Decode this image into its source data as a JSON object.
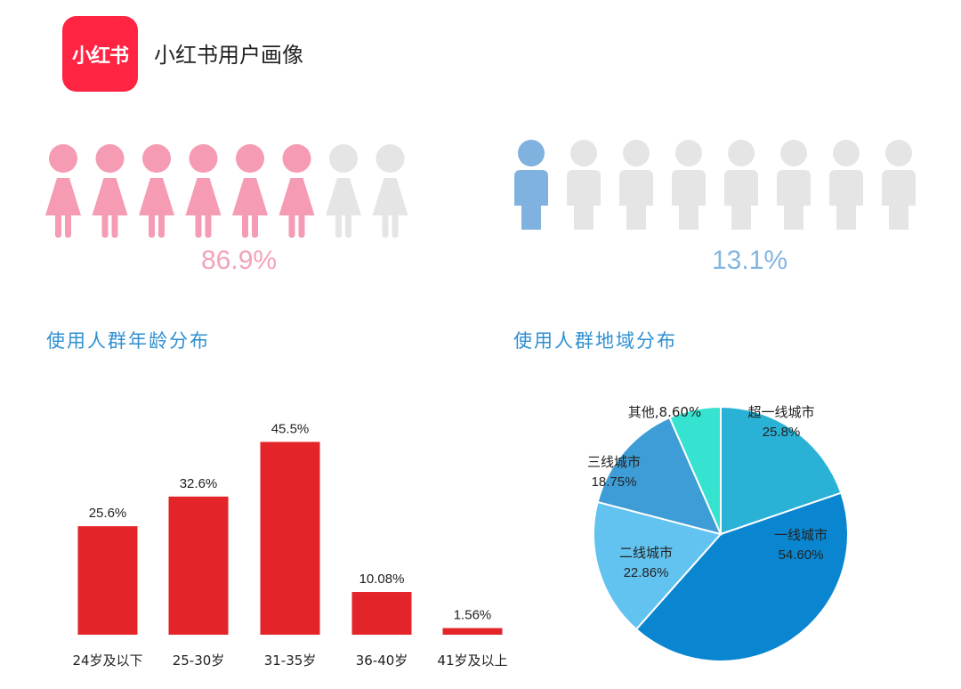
{
  "header": {
    "logo_text": "小红书",
    "title": "小红书用户画像"
  },
  "gender": {
    "female": {
      "percent_label": "86.9%",
      "filled": 6,
      "total": 8,
      "color": "#f59bb4"
    },
    "male": {
      "percent_label": "13.1%",
      "filled": 1,
      "total": 8,
      "color": "#7fb2df"
    },
    "empty_color": "#e5e5e5"
  },
  "age_section": {
    "title": "使用人群年龄分布"
  },
  "region_section": {
    "title": "使用人群地域分布"
  },
  "chart_data": [
    {
      "type": "bar",
      "categories": [
        "24岁及以下",
        "25-30岁",
        "31-35岁",
        "36-40岁",
        "41岁及以上"
      ],
      "values": [
        25.6,
        32.6,
        45.5,
        10.08,
        1.56
      ],
      "value_labels": [
        "25.6%",
        "32.6%",
        "45.5%",
        "10.08%",
        "1.56%"
      ],
      "color": "#e32428",
      "ylim": [
        0,
        50
      ]
    },
    {
      "type": "pie",
      "slices": [
        {
          "name": "超一线城市",
          "value": 25.8,
          "label": "25.8%",
          "color": "#29b2d6"
        },
        {
          "name": "一线城市",
          "value": 54.6,
          "label": "54.60%",
          "color": "#0a86d0"
        },
        {
          "name": "二线城市",
          "value": 22.86,
          "label": "22.86%",
          "color": "#63c3f0"
        },
        {
          "name": "三线城市",
          "value": 18.75,
          "label": "18.75%",
          "color": "#3e9dd6"
        },
        {
          "name": "其他",
          "value": 8.6,
          "label": "8.60%",
          "color": "#36e2d0"
        }
      ]
    }
  ]
}
